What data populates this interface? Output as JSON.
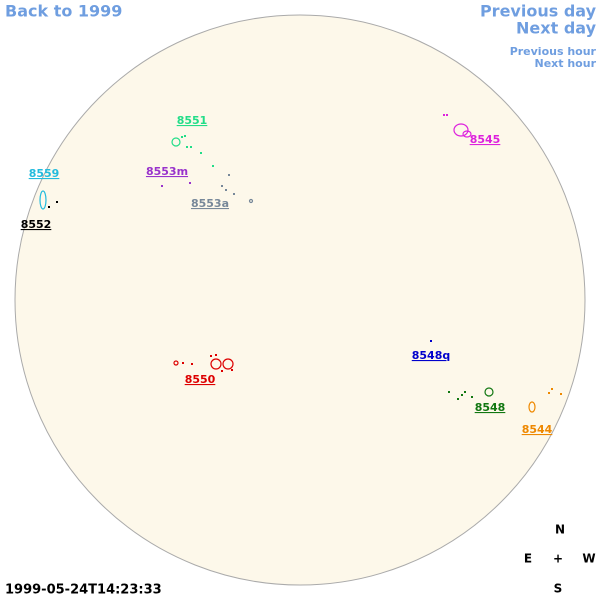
{
  "navigation": {
    "back": "Back to 1999",
    "previous_day": "Previous day",
    "next_day": "Next day",
    "previous_hour": "Previous hour",
    "next_hour": "Next hour"
  },
  "regions": [
    {
      "label": "8551",
      "color": "#22dd88"
    },
    {
      "label": "8545",
      "color": "#dd22dd"
    },
    {
      "label": "8559",
      "color": "#22bbdd"
    },
    {
      "label": "8553m",
      "color": "#9933cc"
    },
    {
      "label": "8553a",
      "color": "#778899"
    },
    {
      "label": "8552",
      "color": "#000000"
    },
    {
      "label": "8548q",
      "color": "#0000cc"
    },
    {
      "label": "8550",
      "color": "#dd0000"
    },
    {
      "label": "8548",
      "color": "#117711"
    },
    {
      "label": "8544",
      "color": "#ee8800"
    }
  ],
  "timestamp": "1999-05-24T14:23:33",
  "compass": {
    "north": "N",
    "east": "E",
    "center": "+",
    "west": "W",
    "south": "S"
  }
}
